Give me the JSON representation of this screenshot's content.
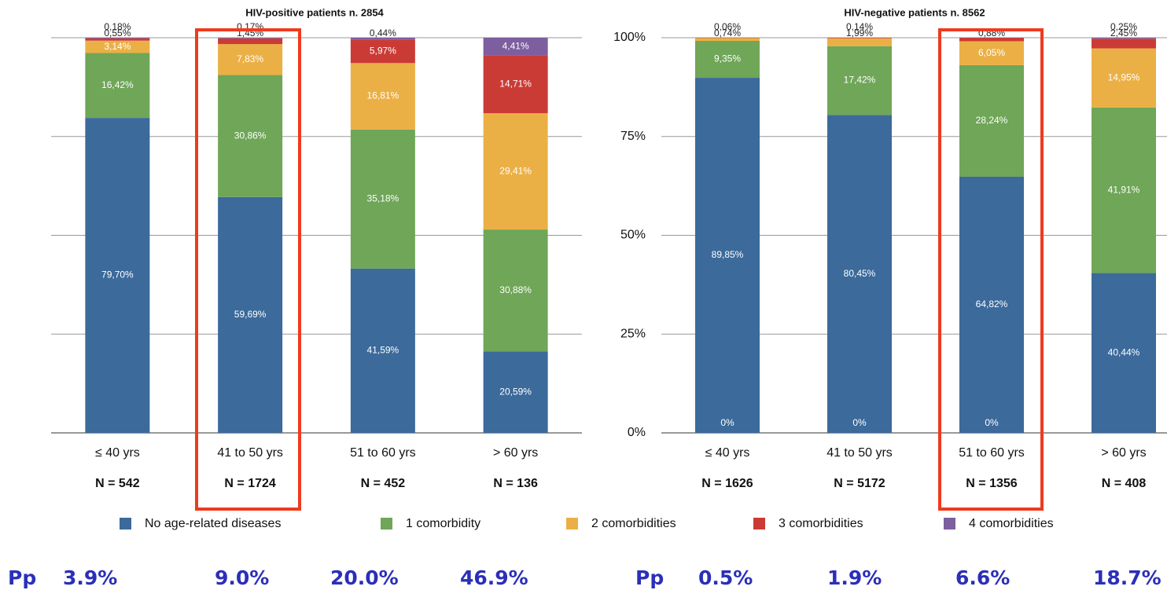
{
  "chart_data": [
    {
      "type": "bar",
      "stacked": true,
      "title": "HIV-positive patients n. 2854",
      "categories": [
        "≤ 40 yrs",
        "41 to 50 yrs",
        "51 to 60 yrs",
        "> 60 yrs"
      ],
      "n_labels": [
        "N = 542",
        "N = 1724",
        "N = 452",
        "N = 136"
      ],
      "ylim": [
        0,
        100
      ],
      "yticks": [
        0,
        25,
        50,
        75,
        100
      ],
      "show_tick_labels": false,
      "grid": true,
      "series": [
        {
          "name": "No age-related diseases",
          "color": "#3b6a9b",
          "values": [
            79.7,
            59.69,
            41.59,
            20.59
          ],
          "value_labels": [
            "79,70%",
            "59,69%",
            "41,59%",
            "20,59%"
          ]
        },
        {
          "name": "1 comorbidity",
          "color": "#6fa658",
          "values": [
            16.42,
            30.86,
            35.18,
            30.88
          ],
          "value_labels": [
            "16,42%",
            "30,86%",
            "35,18%",
            "30,88%"
          ]
        },
        {
          "name": "2 comorbidities",
          "color": "#ebb045",
          "values": [
            3.14,
            7.83,
            16.81,
            29.41
          ],
          "value_labels": [
            "3,14%",
            "7,83%",
            "16,81%",
            "29,41%"
          ]
        },
        {
          "name": "3 comorbidities",
          "color": "#cb3b35",
          "values": [
            0.55,
            1.45,
            5.97,
            14.71
          ],
          "value_labels": [
            "0,55%",
            "1,45%",
            "5,97%",
            "14,71%"
          ]
        },
        {
          "name": "4 comorbidities",
          "color": "#7d5e9f",
          "values": [
            0.18,
            0.17,
            0.44,
            4.41
          ],
          "value_labels": [
            "0,18%",
            "0,17%",
            "0,44%",
            "4,41%"
          ]
        }
      ],
      "pp_label": "Pp",
      "pp_values": [
        "3.9%",
        "9.0%",
        "20.0%",
        "46.9%"
      ]
    },
    {
      "type": "bar",
      "stacked": true,
      "title": "HIV-negative patients n. 8562",
      "categories": [
        "≤ 40 yrs",
        "41 to 50 yrs",
        "51 to 60 yrs",
        "> 60 yrs"
      ],
      "n_labels": [
        "N = 1626",
        "N = 5172",
        "N = 1356",
        "N = 408"
      ],
      "ylim": [
        0,
        100
      ],
      "show_tick_labels": true,
      "grid": true,
      "yticks": [
        {
          "value": 0,
          "label": "0%"
        },
        {
          "value": 25,
          "label": "25%"
        },
        {
          "value": 50,
          "label": "50%"
        },
        {
          "value": 75,
          "label": "75%"
        },
        {
          "value": 100,
          "label": "100%"
        }
      ],
      "series": [
        {
          "color": "#3b6a9b",
          "values": [
            89.85,
            80.45,
            64.82,
            40.44
          ],
          "value_labels": [
            "89,85%",
            "80,45%",
            "64,82%",
            "40,44%"
          ]
        },
        {
          "color": "#6fa658",
          "values": [
            9.35,
            17.42,
            28.24,
            41.91
          ],
          "value_labels": [
            "9,35%",
            "17,42%",
            "28,24%",
            "41,91%"
          ]
        },
        {
          "color": "#ebb045",
          "values": [
            0.74,
            1.99,
            6.05,
            14.95
          ],
          "value_labels": [
            "0,74%",
            "1,99%",
            "6,05%",
            "14,95%"
          ]
        },
        {
          "color": "#cb3b35",
          "values": [
            0.06,
            0.14,
            0.88,
            2.45
          ],
          "value_labels": [
            "0,06%",
            "0,14%",
            "0,88%",
            "2,45%"
          ]
        },
        {
          "color": "#7d5e9f",
          "values": [
            0,
            0,
            0,
            0.25
          ],
          "value_labels": [
            "0%",
            "0%",
            "0%",
            "0,25%"
          ]
        }
      ],
      "pp_label": "Pp",
      "pp_values": [
        "0.5%",
        "1.9%",
        "6.6%",
        "18.7%"
      ]
    }
  ]
}
